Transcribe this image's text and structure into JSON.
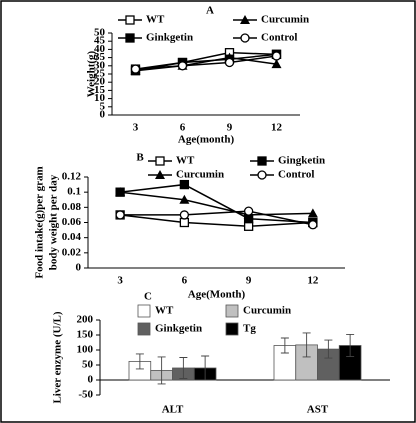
{
  "chart_data": [
    {
      "type": "line",
      "label": "A",
      "xlabel": "Age(month)",
      "ylabel": "Weight(g)",
      "categories": [
        "3",
        "6",
        "9",
        "12"
      ],
      "ylim": [
        0,
        50
      ],
      "yticks": [
        0,
        5,
        10,
        15,
        20,
        25,
        30,
        35,
        40,
        45,
        50
      ],
      "series": [
        {
          "name": "WT",
          "color": "#000000",
          "marker": "square-open",
          "values": [
            28,
            32,
            38,
            37
          ]
        },
        {
          "name": "Curcumin",
          "color": "#000000",
          "marker": "triangle",
          "values": [
            27,
            30,
            35,
            31
          ]
        },
        {
          "name": "Ginkgetin",
          "color": "#000000",
          "marker": "square",
          "values": [
            27,
            32,
            34,
            37
          ]
        },
        {
          "name": "Control",
          "color": "#000000",
          "marker": "circle-open",
          "values": [
            28,
            30,
            32,
            36
          ]
        }
      ]
    },
    {
      "type": "line",
      "label": "B",
      "xlabel": "Age(Month)",
      "ylabel": [
        "Food intake(g)per gram",
        "body weight per day"
      ],
      "categories": [
        "3",
        "6",
        "9",
        "12"
      ],
      "ylim": [
        0,
        0.12
      ],
      "yticks": [
        0,
        0.02,
        0.04,
        0.06,
        0.08,
        0.1,
        0.12
      ],
      "series": [
        {
          "name": "WT",
          "color": "#000000",
          "marker": "square-open",
          "values": [
            0.07,
            0.06,
            0.055,
            0.06
          ]
        },
        {
          "name": "Gingketin",
          "color": "#000000",
          "marker": "square",
          "values": [
            0.1,
            0.11,
            0.065,
            0.06
          ]
        },
        {
          "name": "Curcumin",
          "color": "#000000",
          "marker": "triangle",
          "values": [
            0.1,
            0.09,
            0.07,
            0.072
          ]
        },
        {
          "name": "Control",
          "color": "#000000",
          "marker": "circle-open",
          "values": [
            0.07,
            0.07,
            0.075,
            0.057
          ]
        }
      ]
    },
    {
      "type": "bar",
      "label": "C",
      "ylabel": "Liver enzyme (U/L)",
      "categories": [
        "ALT",
        "AST"
      ],
      "ylim": [
        -50,
        200
      ],
      "yticks": [
        -50,
        0,
        50,
        100,
        150,
        200
      ],
      "series": [
        {
          "name": "WT",
          "color": "#ffffff",
          "values": [
            62,
            115
          ],
          "errors": [
            25,
            25
          ]
        },
        {
          "name": "Curcumin",
          "color": "#c0c0c0",
          "values": [
            32,
            117
          ],
          "errors": [
            45,
            40
          ]
        },
        {
          "name": "Ginkgetin",
          "color": "#606060",
          "values": [
            40,
            103
          ],
          "errors": [
            35,
            30
          ]
        },
        {
          "name": "Tg",
          "color": "#000000",
          "values": [
            40,
            115
          ],
          "errors": [
            40,
            37
          ]
        }
      ]
    }
  ]
}
